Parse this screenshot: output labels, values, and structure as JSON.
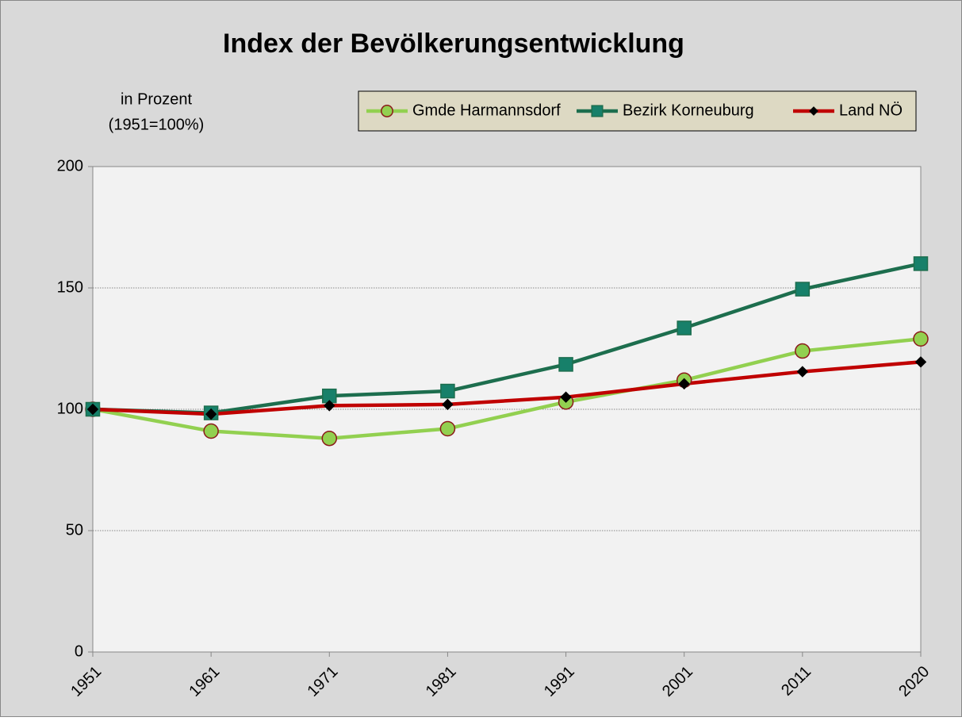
{
  "chart_data": {
    "type": "line",
    "title": "Index der Bevölkerungsentwicklung",
    "y_label": [
      "in Prozent",
      "(1951=100%)"
    ],
    "categories": [
      "1951",
      "1961",
      "1971",
      "1981",
      "1991",
      "2001",
      "2011",
      "2020"
    ],
    "series": [
      {
        "name": "Gmde Harmannsdorf",
        "color": "#92d050",
        "marker": "circle",
        "marker_edge": "#8b1a1a",
        "values": [
          100,
          91,
          88,
          92,
          103,
          112,
          124,
          129
        ]
      },
      {
        "name": "Bezirk Korneuburg",
        "color": "#1d6e4e",
        "marker": "square",
        "marker_edge": "#1d6e4e",
        "marker_fill": "#17806a",
        "values": [
          100,
          98.5,
          105.5,
          107.5,
          118.5,
          133.5,
          149.5,
          160
        ]
      },
      {
        "name": "Land NÖ",
        "color": "#c00000",
        "marker": "diamond",
        "marker_edge": "#000000",
        "marker_fill": "#000000",
        "values": [
          100,
          98,
          101.5,
          102,
          105,
          110.5,
          115.5,
          119.5
        ]
      }
    ],
    "ylim": [
      0,
      200
    ],
    "yticks": [
      0,
      50,
      100,
      150,
      200
    ],
    "grid": true,
    "legend": "top-right"
  }
}
